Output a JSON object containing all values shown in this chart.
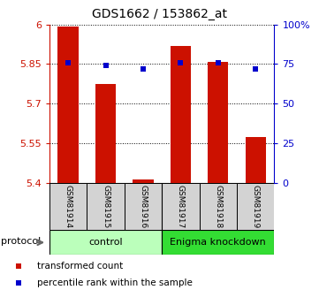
{
  "title": "GDS1662 / 153862_at",
  "samples": [
    "GSM81914",
    "GSM81915",
    "GSM81916",
    "GSM81917",
    "GSM81918",
    "GSM81919"
  ],
  "bar_values": [
    5.993,
    5.775,
    5.412,
    5.92,
    5.857,
    5.575
  ],
  "blue_pct": [
    76,
    74,
    72,
    76,
    76,
    72
  ],
  "y_min": 5.4,
  "y_max": 6.0,
  "y_ticks": [
    5.4,
    5.55,
    5.7,
    5.85,
    6.0
  ],
  "y_tick_labels": [
    "5.4",
    "5.55",
    "5.7",
    "5.85",
    "6"
  ],
  "right_y_ticks": [
    0,
    25,
    50,
    75,
    100
  ],
  "right_y_tick_labels": [
    "0",
    "25",
    "50",
    "75",
    "100%"
  ],
  "bar_color": "#cc1100",
  "blue_color": "#0000cc",
  "groups": [
    {
      "label": "control",
      "indices": [
        0,
        1,
        2
      ],
      "color": "#bbffbb"
    },
    {
      "label": "Enigma knockdown",
      "indices": [
        3,
        4,
        5
      ],
      "color": "#33dd33"
    }
  ],
  "protocol_label": "protocol",
  "legend_items": [
    {
      "label": "transformed count",
      "color": "#cc1100"
    },
    {
      "label": "percentile rank within the sample",
      "color": "#0000cc"
    }
  ],
  "grid_linestyle": ":"
}
